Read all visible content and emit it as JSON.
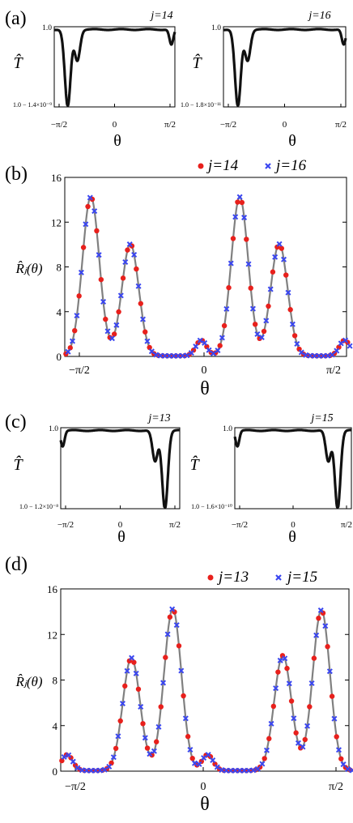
{
  "figure": {
    "panels": [
      {
        "label": "(a)",
        "kind": "transmission"
      },
      {
        "label": "(b)",
        "kind": "ratio"
      },
      {
        "label": "(c)",
        "kind": "transmission"
      },
      {
        "label": "(d)",
        "kind": "ratio"
      }
    ]
  },
  "colors": {
    "curve_black": "#111111",
    "fit_gray": "#808080",
    "series_a_red": "#e8201c",
    "series_b_blue": "#3a46f0"
  },
  "chart_data": [
    {
      "panel": "(a)",
      "type": "line",
      "subplots": [
        {
          "title": "j=14",
          "ylabel": "T̂",
          "xlabel": "θ",
          "x_range": [
            -1.5708,
            1.5708
          ],
          "y_ticks": [
            "1.0",
            "1.0 − 1.4×10⁻⁹"
          ],
          "x_ticks": [
            "−π/2",
            "0",
            "π/2"
          ],
          "baseline": 0.985,
          "baseline_ripple": 0.012,
          "dips": [
            {
              "x": -1.22,
              "depth": 1.0,
              "width": 0.075
            },
            {
              "x": -0.97,
              "depth": 0.4,
              "width": 0.07
            },
            {
              "x": 1.48,
              "depth": 0.2,
              "width": 0.05
            }
          ]
        },
        {
          "title": "j=16",
          "ylabel": "T̂",
          "xlabel": "θ",
          "x_range": [
            -1.5708,
            1.5708
          ],
          "y_ticks": [
            "1.0",
            "1.0 − 1.8×10⁻¹¹"
          ],
          "x_ticks": [
            "−π/2",
            "0",
            "π/2"
          ],
          "baseline": 0.985,
          "baseline_ripple": 0.012,
          "dips": [
            {
              "x": -1.2,
              "depth": 1.0,
              "width": 0.075
            },
            {
              "x": -0.95,
              "depth": 0.4,
              "width": 0.07
            },
            {
              "x": 1.52,
              "depth": 0.2,
              "width": 0.05
            }
          ]
        }
      ]
    },
    {
      "panel": "(b)",
      "type": "scatter",
      "ylabel": "R̂ⱼ(θ)",
      "xlabel": "θ",
      "x_range": [
        -1.5708,
        1.5708
      ],
      "y_range": [
        0,
        16
      ],
      "y_ticks": [
        0,
        4,
        8,
        12,
        16
      ],
      "x_ticks": [
        "−π/2",
        "0",
        "π/2"
      ],
      "legend_position": "top-right",
      "peaks": [
        {
          "x": -1.28,
          "height": 14.2,
          "width": 0.094
        },
        {
          "x": -0.84,
          "height": 10.0,
          "width": 0.094
        },
        {
          "x": -0.05,
          "height": 1.4,
          "width": 0.06
        },
        {
          "x": 0.38,
          "height": 14.2,
          "width": 0.094
        },
        {
          "x": 0.82,
          "height": 10.0,
          "width": 0.094
        },
        {
          "x": 1.55,
          "height": 1.4,
          "width": 0.06
        }
      ],
      "series": [
        {
          "name": "j=14",
          "marker": "circle",
          "color": "#e8201c"
        },
        {
          "name": "j=16",
          "marker": "x",
          "color": "#3a46f0"
        }
      ]
    },
    {
      "panel": "(c)",
      "type": "line",
      "subplots": [
        {
          "title": "j=13",
          "ylabel": "T̂",
          "xlabel": "θ",
          "x_range": [
            -1.5708,
            1.5708
          ],
          "y_ticks": [
            "1.0",
            "1.0 − 1.2×10⁻⁸"
          ],
          "x_ticks": [
            "−π/2",
            "0",
            "π/2"
          ],
          "baseline": 0.985,
          "baseline_ripple": 0.012,
          "dips": [
            {
              "x": -1.52,
              "depth": 0.2,
              "width": 0.05
            },
            {
              "x": 0.92,
              "depth": 0.4,
              "width": 0.07
            },
            {
              "x": 1.18,
              "depth": 1.0,
              "width": 0.075
            }
          ]
        },
        {
          "title": "j=15",
          "ylabel": "T̂",
          "xlabel": "θ",
          "x_range": [
            -1.5708,
            1.5708
          ],
          "y_ticks": [
            "1.0",
            "1.0 − 1.6×10⁻¹⁰"
          ],
          "x_ticks": [
            "−π/2",
            "0",
            "π/2"
          ],
          "baseline": 0.985,
          "baseline_ripple": 0.012,
          "dips": [
            {
              "x": -1.5,
              "depth": 0.2,
              "width": 0.05
            },
            {
              "x": 0.95,
              "depth": 0.4,
              "width": 0.07
            },
            {
              "x": 1.2,
              "depth": 1.0,
              "width": 0.075
            }
          ]
        }
      ]
    },
    {
      "panel": "(d)",
      "type": "scatter",
      "ylabel": "R̂ⱼ(θ)",
      "xlabel": "θ",
      "x_range": [
        -1.5708,
        1.5708
      ],
      "y_range": [
        0,
        16
      ],
      "y_ticks": [
        0,
        4,
        8,
        12,
        16
      ],
      "x_ticks": [
        "−π/2",
        "0",
        "π/2"
      ],
      "legend_position": "top-right",
      "peaks": [
        {
          "x": -1.5,
          "height": 1.4,
          "width": 0.06
        },
        {
          "x": -0.8,
          "height": 9.9,
          "width": 0.094
        },
        {
          "x": -0.35,
          "height": 14.2,
          "width": 0.094
        },
        {
          "x": 0.03,
          "height": 1.4,
          "width": 0.06
        },
        {
          "x": 0.85,
          "height": 10.1,
          "width": 0.094
        },
        {
          "x": 1.27,
          "height": 14.1,
          "width": 0.094
        }
      ],
      "series": [
        {
          "name": "j=13",
          "marker": "circle",
          "color": "#e8201c"
        },
        {
          "name": "j=15",
          "marker": "x",
          "color": "#3a46f0"
        }
      ]
    }
  ]
}
